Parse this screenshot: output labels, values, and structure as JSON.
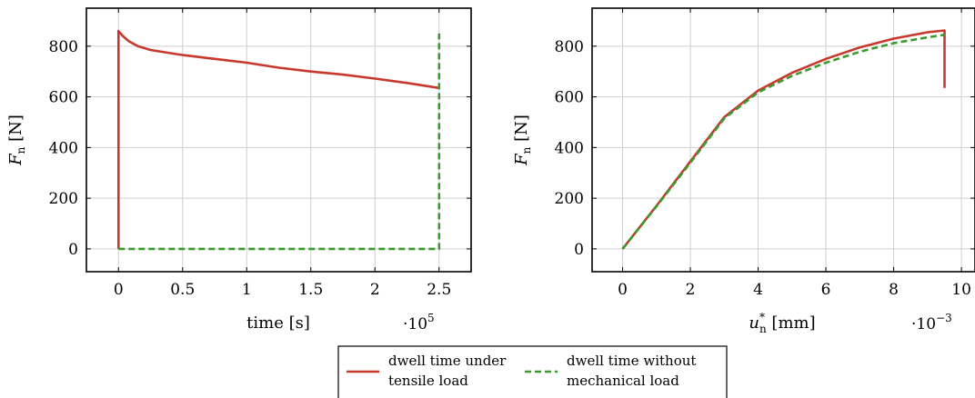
{
  "chart_data": [
    {
      "type": "line",
      "xlabel": "time [s]",
      "ylabel_main": "F",
      "ylabel_sub": "n",
      "ylabel_unit": "[N]",
      "xlim": [
        -25000,
        275000
      ],
      "ylim": [
        -90,
        950
      ],
      "x_ticks": [
        0,
        50000,
        100000,
        150000,
        200000,
        250000
      ],
      "x_tick_labels": [
        "0",
        "0.5",
        "1",
        "1.5",
        "2",
        "2.5"
      ],
      "y_ticks": [
        0,
        200,
        400,
        600,
        800
      ],
      "y_tick_labels": [
        "0",
        "200",
        "400",
        "600",
        "800"
      ],
      "x_multiplier": {
        "base": "·10",
        "exp": "5"
      },
      "grid": true,
      "series": [
        {
          "name": "dwell time under tensile load",
          "color": "#c8382c",
          "style": "solid",
          "points": [
            [
              0,
              0
            ],
            [
              0,
              860
            ],
            [
              3000,
              842
            ],
            [
              8000,
              820
            ],
            [
              15000,
              800
            ],
            [
              25000,
              785
            ],
            [
              50000,
              765
            ],
            [
              75000,
              750
            ],
            [
              100000,
              735
            ],
            [
              125000,
              715
            ],
            [
              150000,
              700
            ],
            [
              175000,
              688
            ],
            [
              200000,
              672
            ],
            [
              225000,
              655
            ],
            [
              250000,
              635
            ]
          ]
        },
        {
          "name": "dwell time without mechanical load",
          "color": "#3b9a2e",
          "style": "dashed",
          "points": [
            [
              0,
              0
            ],
            [
              250000,
              0
            ],
            [
              250000,
              850
            ]
          ]
        }
      ]
    },
    {
      "type": "line",
      "xlabel_main": "u",
      "xlabel_sub": "n",
      "xlabel_sup": "*",
      "xlabel_unit": "[mm]",
      "ylabel_main": "F",
      "ylabel_sub": "n",
      "ylabel_unit": "[N]",
      "xlim": [
        -0.0009,
        0.0104
      ],
      "ylim": [
        -90,
        950
      ],
      "x_ticks": [
        0,
        0.002,
        0.004,
        0.006,
        0.008,
        0.01
      ],
      "x_tick_labels": [
        "0",
        "2",
        "4",
        "6",
        "8",
        "10"
      ],
      "y_ticks": [
        0,
        200,
        400,
        600,
        800
      ],
      "y_tick_labels": [
        "0",
        "200",
        "400",
        "600",
        "800"
      ],
      "x_multiplier": {
        "base": "·10",
        "exp": "−3"
      },
      "grid": true,
      "series": [
        {
          "name": "dwell time under tensile load",
          "color": "#c8382c",
          "style": "solid",
          "points": [
            [
              0,
              0
            ],
            [
              0.001,
              170
            ],
            [
              0.002,
              345
            ],
            [
              0.003,
              520
            ],
            [
              0.004,
              625
            ],
            [
              0.005,
              695
            ],
            [
              0.006,
              750
            ],
            [
              0.007,
              795
            ],
            [
              0.008,
              830
            ],
            [
              0.009,
              855
            ],
            [
              0.0095,
              862
            ],
            [
              0.0095,
              635
            ]
          ]
        },
        {
          "name": "dwell time without mechanical load",
          "color": "#3b9a2e",
          "style": "dashed",
          "points": [
            [
              0,
              0
            ],
            [
              0.001,
              168
            ],
            [
              0.002,
              340
            ],
            [
              0.003,
              515
            ],
            [
              0.004,
              618
            ],
            [
              0.005,
              683
            ],
            [
              0.006,
              735
            ],
            [
              0.007,
              778
            ],
            [
              0.008,
              812
            ],
            [
              0.009,
              835
            ],
            [
              0.0095,
              845
            ]
          ]
        }
      ]
    }
  ],
  "legend": {
    "entries": [
      {
        "line1": "dwell time under",
        "line2": "tensile load",
        "color": "#c8382c",
        "style": "solid"
      },
      {
        "line1": "dwell time without",
        "line2": "mechanical load",
        "color": "#3b9a2e",
        "style": "dashed"
      }
    ]
  }
}
